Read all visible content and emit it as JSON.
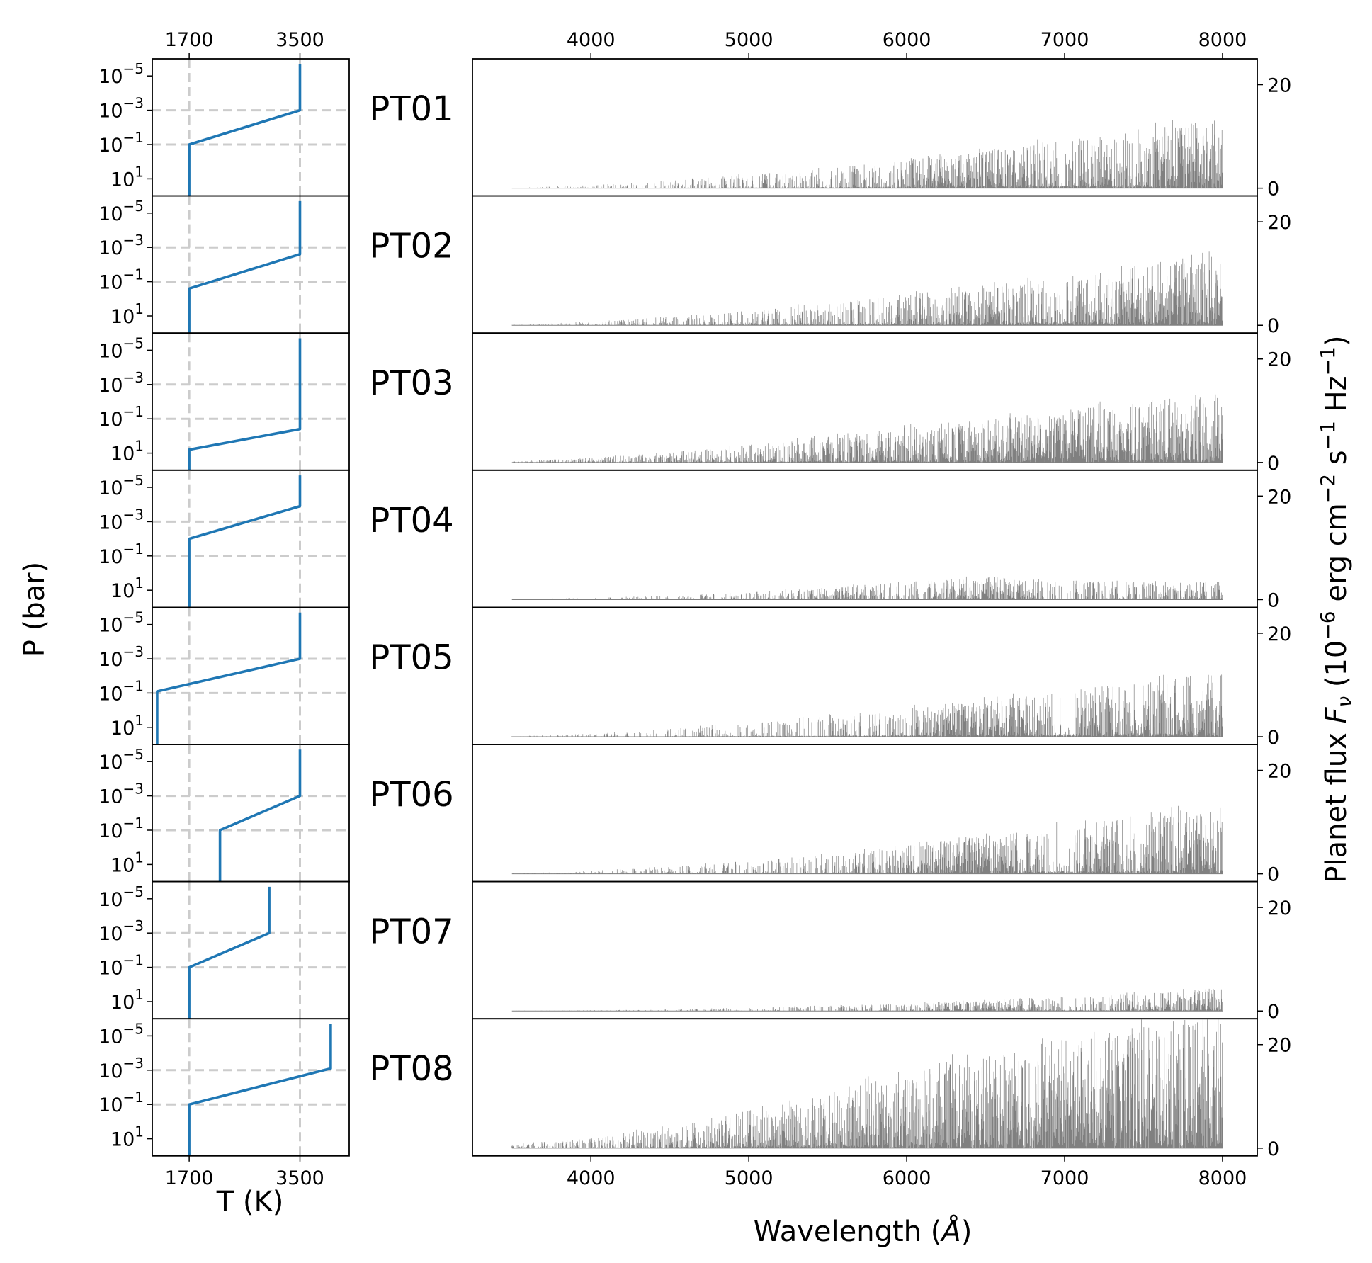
{
  "chart_data": {
    "type": "multi-panel line + spectrum",
    "shared": {
      "pt_xlabel": "T (K)",
      "pt_ylabel": "P (bar)",
      "pt_xlim": [
        1100,
        4300
      ],
      "pt_xticks": [
        1700,
        3500
      ],
      "pt_xtick_labels": [
        "1700",
        "3500"
      ],
      "pt_ylim_log10_bar": [
        -6,
        2
      ],
      "pt_yticks_log10": [
        -5,
        -3,
        -1,
        1
      ],
      "pt_ytick_labels": [
        {
          "base": "10",
          "exp": "−5"
        },
        {
          "base": "10",
          "exp": "−3"
        },
        {
          "base": "10",
          "exp": "−1"
        },
        {
          "base": "10",
          "exp": "1"
        }
      ],
      "pt_reference_lines": {
        "temperatures_K": [
          1700,
          3500
        ],
        "log10_pressures": [
          -3,
          -1
        ],
        "style": "dashed",
        "color": "#cccccc"
      },
      "spec_xlabel": {
        "text": "Wavelength (",
        "symbol": "Å",
        "close": ")"
      },
      "spec_xlim": [
        3250,
        8220
      ],
      "spec_xticks": [
        4000,
        5000,
        6000,
        7000,
        8000
      ],
      "spec_xtick_labels": [
        "4000",
        "5000",
        "6000",
        "7000",
        "8000"
      ],
      "spec_ylim": [
        -1.5,
        25
      ],
      "spec_yticks": [
        0,
        20
      ],
      "spec_ytick_labels": [
        "0",
        "20"
      ],
      "spec_ylabel": {
        "text": "Planet flux ",
        "symbol": "F",
        "symbol_sub": "ν",
        "units_prefix": " (10",
        "units_exp1": "−6",
        "units_mid1": " erg cm",
        "units_exp2": "−2",
        "units_mid2": " s",
        "units_exp3": "−1",
        "units_mid3": " Hz",
        "units_exp4": "−1",
        "units_close": ")"
      },
      "spec_wavelength_range": [
        3500,
        8000
      ],
      "colors": {
        "profile": "#1f77b4",
        "spectrum": "#808080",
        "grid": "#cccccc"
      }
    },
    "panels": [
      {
        "label": "PT01",
        "profile": [
          [
            1700,
            2
          ],
          [
            1700,
            -1
          ],
          [
            3500,
            -3
          ],
          [
            3500,
            -5.7
          ]
        ],
        "envelope": [
          [
            3500,
            0.1
          ],
          [
            4000,
            0.6
          ],
          [
            4500,
            1.5
          ],
          [
            5000,
            2.6
          ],
          [
            5500,
            4.0
          ],
          [
            6000,
            5.6
          ],
          [
            6500,
            7.4
          ],
          [
            7000,
            9.3
          ],
          [
            7500,
            11.3
          ],
          [
            8000,
            13.4
          ]
        ],
        "activity": [
          [
            3500,
            0.25
          ],
          [
            5500,
            0.45
          ],
          [
            6000,
            0.5
          ],
          [
            6200,
            0.95
          ],
          [
            6600,
            0.9
          ],
          [
            7000,
            0.35
          ],
          [
            7200,
            0.85
          ],
          [
            7400,
            0.4
          ],
          [
            7700,
            0.95
          ],
          [
            8000,
            0.9
          ]
        ]
      },
      {
        "label": "PT02",
        "profile": [
          [
            1700,
            2
          ],
          [
            1700,
            -0.6
          ],
          [
            3500,
            -2.6
          ],
          [
            3500,
            -5.7
          ]
        ],
        "envelope": [
          [
            3500,
            0.1
          ],
          [
            4000,
            0.7
          ],
          [
            4500,
            1.7
          ],
          [
            5000,
            2.9
          ],
          [
            5500,
            4.3
          ],
          [
            6000,
            6.0
          ],
          [
            6500,
            7.8
          ],
          [
            7000,
            9.6
          ],
          [
            7500,
            11.5
          ],
          [
            8000,
            13.6
          ]
        ],
        "activity": [
          [
            3500,
            0.3
          ],
          [
            5000,
            0.45
          ],
          [
            5500,
            0.5
          ],
          [
            6000,
            0.6
          ],
          [
            6500,
            0.9
          ],
          [
            7000,
            0.5
          ],
          [
            7200,
            0.85
          ],
          [
            7500,
            0.8
          ],
          [
            8000,
            0.95
          ]
        ]
      },
      {
        "label": "PT03",
        "profile": [
          [
            1700,
            2
          ],
          [
            1700,
            0.8
          ],
          [
            3500,
            -0.4
          ],
          [
            3500,
            -5.7
          ]
        ],
        "envelope": [
          [
            3500,
            0.2
          ],
          [
            4000,
            0.9
          ],
          [
            4500,
            2.0
          ],
          [
            5000,
            3.4
          ],
          [
            5500,
            5.0
          ],
          [
            6000,
            6.8
          ],
          [
            6500,
            8.5
          ],
          [
            7000,
            10.2
          ],
          [
            7500,
            11.9
          ],
          [
            8000,
            13.5
          ]
        ],
        "activity": [
          [
            3500,
            0.5
          ],
          [
            4500,
            0.6
          ],
          [
            5500,
            0.7
          ],
          [
            6000,
            0.8
          ],
          [
            6800,
            0.95
          ],
          [
            7400,
            0.95
          ],
          [
            8000,
            0.95
          ]
        ]
      },
      {
        "label": "PT04",
        "profile": [
          [
            1700,
            2
          ],
          [
            1700,
            -2
          ],
          [
            3500,
            -3.9
          ],
          [
            3500,
            -5.7
          ]
        ],
        "envelope": [
          [
            3500,
            0.1
          ],
          [
            4000,
            0.35
          ],
          [
            4500,
            0.8
          ],
          [
            5000,
            1.5
          ],
          [
            5500,
            2.4
          ],
          [
            6000,
            3.4
          ],
          [
            6500,
            4.5
          ],
          [
            7000,
            3.8
          ],
          [
            7500,
            3.3
          ],
          [
            8000,
            3.6
          ]
        ],
        "activity": [
          [
            3500,
            0.2
          ],
          [
            5000,
            0.4
          ],
          [
            5500,
            0.8
          ],
          [
            6000,
            0.3
          ],
          [
            6300,
            0.85
          ],
          [
            6700,
            0.9
          ],
          [
            7000,
            0.3
          ],
          [
            7500,
            0.55
          ],
          [
            8000,
            0.6
          ]
        ]
      },
      {
        "label": "PT05",
        "profile": [
          [
            1180,
            2
          ],
          [
            1180,
            -1.1
          ],
          [
            3500,
            -3
          ],
          [
            3500,
            -5.7
          ]
        ],
        "envelope": [
          [
            3500,
            0.1
          ],
          [
            4000,
            0.6
          ],
          [
            4500,
            1.5
          ],
          [
            5000,
            2.6
          ],
          [
            5500,
            4.0
          ],
          [
            6000,
            5.5
          ],
          [
            6500,
            7.2
          ],
          [
            7000,
            9.0
          ],
          [
            7500,
            10.8
          ],
          [
            8000,
            12.5
          ]
        ],
        "activity": [
          [
            3500,
            0.2
          ],
          [
            5500,
            0.35
          ],
          [
            6000,
            0.4
          ],
          [
            6200,
            0.9
          ],
          [
            6700,
            0.9
          ],
          [
            7000,
            0.3
          ],
          [
            7200,
            0.8
          ],
          [
            7500,
            0.6
          ],
          [
            8000,
            0.95
          ]
        ]
      },
      {
        "label": "PT06",
        "profile": [
          [
            2200,
            2
          ],
          [
            2200,
            -1
          ],
          [
            3500,
            -3
          ],
          [
            3500,
            -5.7
          ]
        ],
        "envelope": [
          [
            3500,
            0.1
          ],
          [
            4000,
            0.6
          ],
          [
            4500,
            1.5
          ],
          [
            5000,
            2.6
          ],
          [
            5500,
            4.0
          ],
          [
            6000,
            5.6
          ],
          [
            6500,
            7.4
          ],
          [
            7000,
            9.3
          ],
          [
            7500,
            11.3
          ],
          [
            8000,
            13.4
          ]
        ],
        "activity": [
          [
            3500,
            0.25
          ],
          [
            5500,
            0.45
          ],
          [
            6000,
            0.5
          ],
          [
            6200,
            0.95
          ],
          [
            6600,
            0.9
          ],
          [
            7000,
            0.35
          ],
          [
            7200,
            0.85
          ],
          [
            7400,
            0.4
          ],
          [
            7700,
            0.95
          ],
          [
            8000,
            0.9
          ]
        ]
      },
      {
        "label": "PT07",
        "profile": [
          [
            1700,
            2
          ],
          [
            1700,
            -1
          ],
          [
            3000,
            -3
          ],
          [
            3000,
            -5.7
          ]
        ],
        "envelope": [
          [
            3500,
            0.05
          ],
          [
            4000,
            0.15
          ],
          [
            4500,
            0.3
          ],
          [
            5000,
            0.6
          ],
          [
            5500,
            1.0
          ],
          [
            6000,
            1.5
          ],
          [
            6500,
            2.2
          ],
          [
            7000,
            2.8
          ],
          [
            7500,
            3.5
          ],
          [
            8000,
            4.5
          ]
        ],
        "activity": [
          [
            3500,
            0.2
          ],
          [
            5500,
            0.35
          ],
          [
            6000,
            0.4
          ],
          [
            6300,
            0.85
          ],
          [
            6700,
            0.85
          ],
          [
            7000,
            0.3
          ],
          [
            7500,
            0.6
          ],
          [
            8000,
            0.95
          ]
        ]
      },
      {
        "label": "PT08",
        "profile": [
          [
            1700,
            2
          ],
          [
            1700,
            -1
          ],
          [
            4000,
            -3.1
          ],
          [
            4000,
            -5.7
          ]
        ],
        "envelope": [
          [
            3500,
            0.8
          ],
          [
            4000,
            2.0
          ],
          [
            4500,
            4.5
          ],
          [
            5000,
            7.5
          ],
          [
            5500,
            11.0
          ],
          [
            6000,
            14.5
          ],
          [
            6500,
            18.0
          ],
          [
            7000,
            21.0
          ],
          [
            7500,
            23.5
          ],
          [
            8000,
            26.0
          ]
        ],
        "activity": [
          [
            3500,
            0.5
          ],
          [
            4500,
            0.6
          ],
          [
            5500,
            0.8
          ],
          [
            6000,
            0.85
          ],
          [
            6500,
            0.95
          ],
          [
            7000,
            0.95
          ],
          [
            8000,
            0.95
          ]
        ]
      }
    ]
  }
}
